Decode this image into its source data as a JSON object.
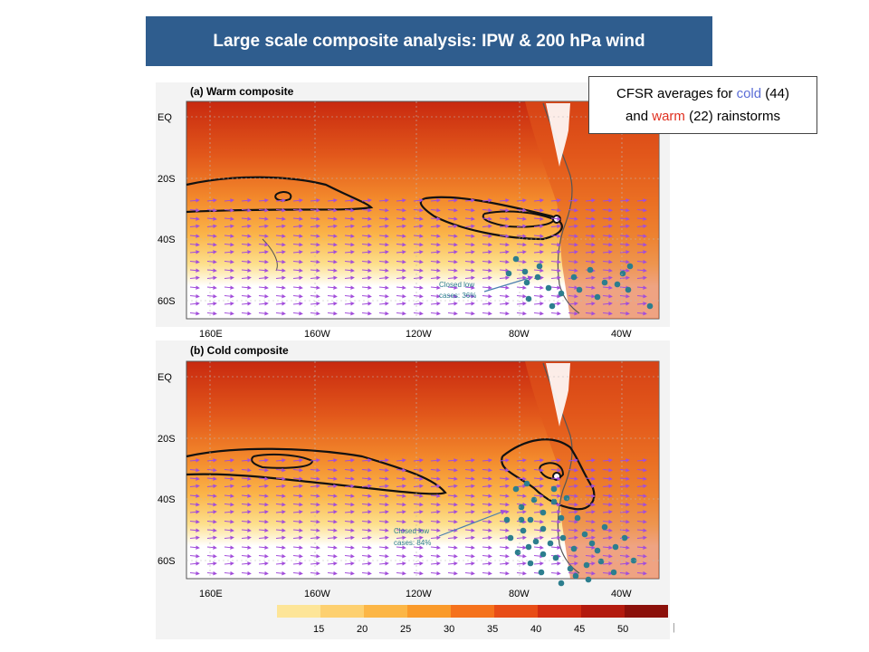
{
  "header": {
    "title": "Large scale composite analysis: IPW & 200 hPa wind"
  },
  "legend_note": {
    "line1_prefix": "CFSR averages for ",
    "cold_word": "cold",
    "line1_suffix": " (44)",
    "line2_prefix": "and ",
    "warm_word": "warm",
    "line2_suffix": " (22) rainstorms",
    "cold_color": "#5b6ed6",
    "warm_color": "#e03020"
  },
  "panels": [
    {
      "title": "(a) Warm composite",
      "annotation": [
        "Closed low",
        "cases: 36%"
      ],
      "closed_low_fraction": 0.36
    },
    {
      "title": "(b) Cold composite",
      "annotation": [
        "Closed low",
        "cases: 84%"
      ],
      "closed_low_fraction": 0.84
    }
  ],
  "lat_labels": [
    "EQ",
    "20S",
    "40S",
    "60S"
  ],
  "lon_labels": [
    "160E",
    "160W",
    "120W",
    "80W",
    "40W"
  ],
  "colorbar": {
    "ticks": [
      "15",
      "20",
      "25",
      "30",
      "35",
      "40",
      "45",
      "50"
    ],
    "unit": "[mm]",
    "colors": [
      "#fde598",
      "#fdd070",
      "#fcb646",
      "#fa9a2a",
      "#f5721c",
      "#e84d17",
      "#d22d12",
      "#b31a0e",
      "#8b100a"
    ]
  },
  "colors": {
    "title_bar": "#2f5d8e",
    "marker": "#2c7e8e",
    "wind_arrow": "#a24ddb",
    "contour": "#111111"
  }
}
